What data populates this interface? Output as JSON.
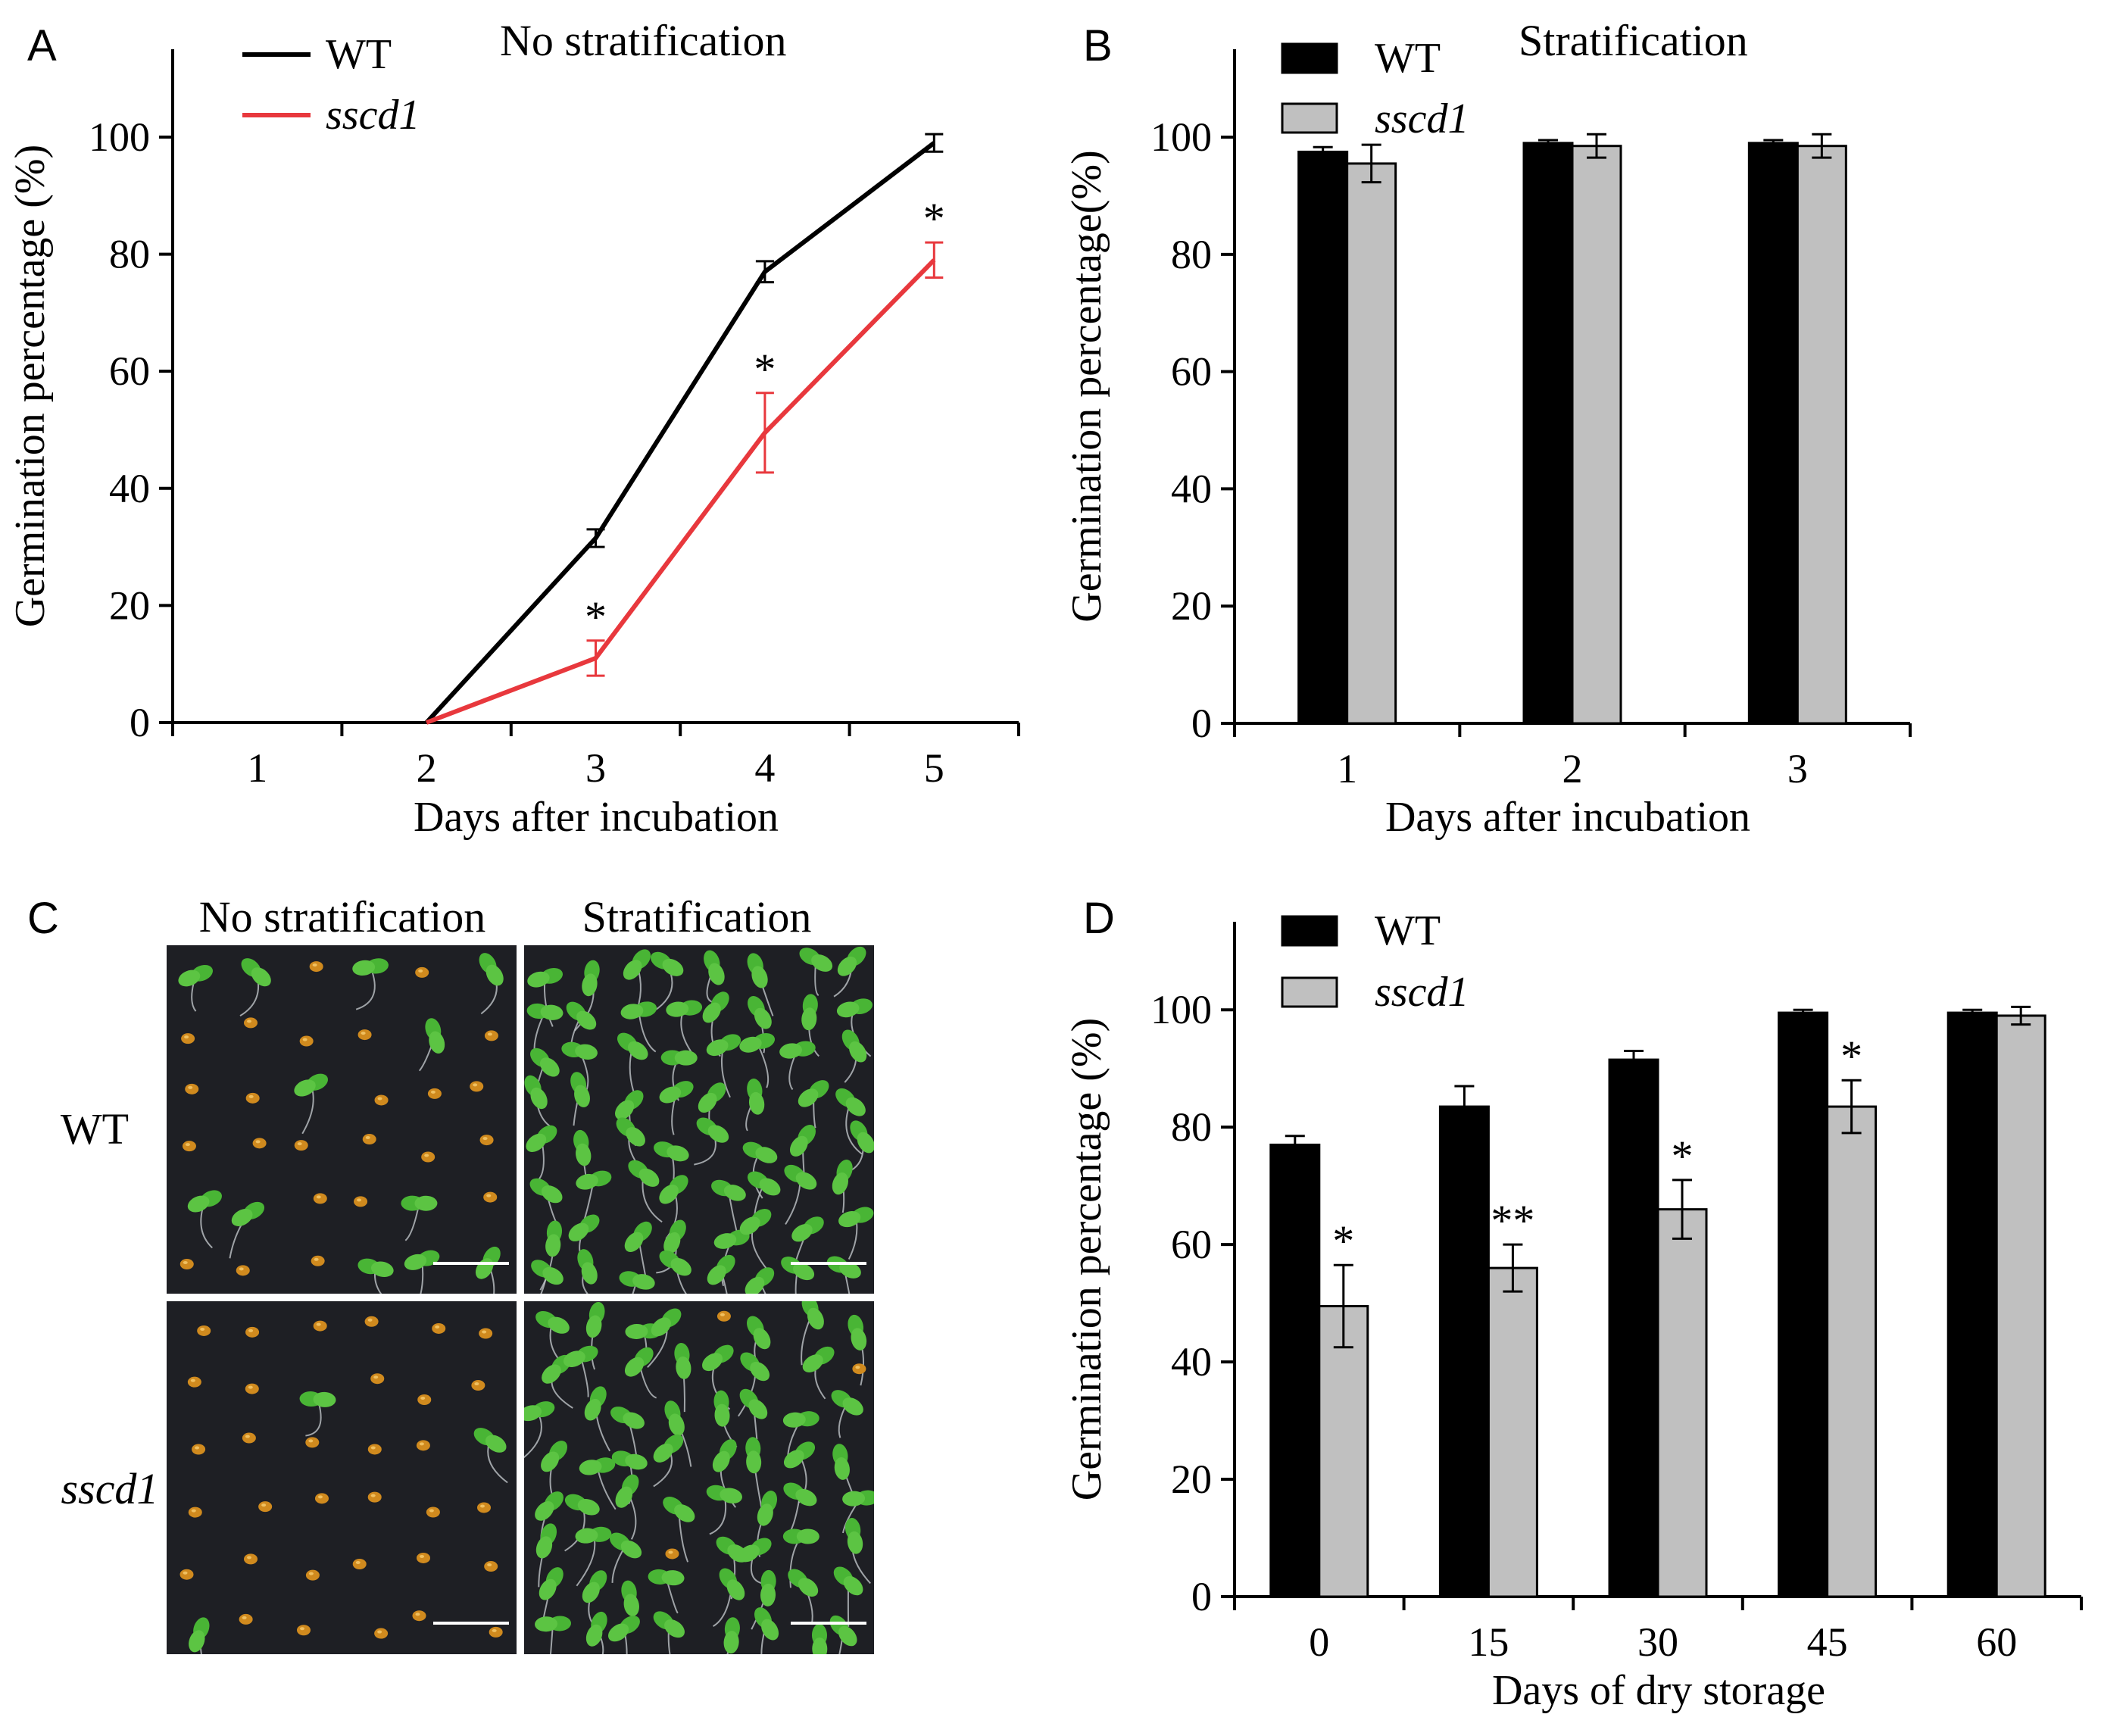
{
  "colors": {
    "wt_line": "#000000",
    "sscd1_line": "#e8383d",
    "wt_bar": "#000000",
    "sscd1_bar": "#c0c0c0",
    "photo_bg": "#1e1f24",
    "seedling": "#49b535",
    "seed": "#d08a1e"
  },
  "panelA": {
    "letter": "A",
    "title": "No stratification",
    "legend": [
      {
        "label": "WT"
      },
      {
        "label": "sscd1"
      }
    ],
    "chart_data": {
      "type": "line",
      "title": "No stratification",
      "xlabel": "Days after incubation",
      "ylabel": "Germination  percentage (%)",
      "categories": [
        "1",
        "2",
        "3",
        "4",
        "5"
      ],
      "ylim": [
        0,
        115
      ],
      "yticks": [
        "0",
        "20",
        "40",
        "60",
        "80",
        "100"
      ],
      "series": [
        {
          "name": "WT",
          "x": [
            2,
            3,
            4,
            5
          ],
          "y": [
            0,
            31.5,
            77,
            99
          ],
          "err": [
            0,
            1.5,
            1.8,
            1.5
          ],
          "stars": [
            "",
            "",
            "",
            ""
          ]
        },
        {
          "name": "sscd1",
          "x": [
            2,
            3,
            4,
            5
          ],
          "y": [
            0,
            11,
            49.5,
            79
          ],
          "err": [
            0,
            3,
            6.8,
            3
          ],
          "stars": [
            "",
            "*",
            "*",
            "*"
          ]
        }
      ]
    }
  },
  "panelB": {
    "letter": "B",
    "title": "Stratification",
    "legend": [
      {
        "label": "WT"
      },
      {
        "label": "sscd1"
      }
    ],
    "chart_data": {
      "type": "bar",
      "title": "Stratification",
      "xlabel": "Days after incubation",
      "ylabel": "Germination percentage(%)",
      "categories": [
        "1",
        "2",
        "3"
      ],
      "ylim": [
        0,
        115
      ],
      "yticks": [
        "0",
        "20",
        "40",
        "60",
        "80",
        "100"
      ],
      "series": [
        {
          "name": "WT",
          "values": [
            97.5,
            99,
            99
          ],
          "err": [
            0.8,
            0.5,
            0.5
          ],
          "stars": [
            "",
            "",
            ""
          ]
        },
        {
          "name": "sscd1",
          "values": [
            95.5,
            98.5,
            98.5
          ],
          "err": [
            3.2,
            2,
            2
          ],
          "stars": [
            "",
            "",
            ""
          ]
        }
      ]
    }
  },
  "panelC": {
    "letter": "C",
    "col_labels": [
      "No stratification",
      "Stratification"
    ],
    "row_labels": [
      "WT",
      "sscd1"
    ]
  },
  "panelD": {
    "letter": "D",
    "legend": [
      {
        "label": "WT"
      },
      {
        "label": "sscd1"
      }
    ],
    "chart_data": {
      "type": "bar",
      "title": "",
      "xlabel": "Days of dry storage",
      "ylabel": "Germination percentage (%)",
      "categories": [
        "0",
        "15",
        "30",
        "45",
        "60"
      ],
      "ylim": [
        0,
        115
      ],
      "yticks": [
        "0",
        "20",
        "40",
        "60",
        "80",
        "100"
      ],
      "series": [
        {
          "name": "WT",
          "values": [
            77,
            83.5,
            91.5,
            99.5,
            99.5
          ],
          "err": [
            1.5,
            3.5,
            1.5,
            0.5,
            0.5
          ],
          "stars": [
            "",
            "",
            "",
            "",
            ""
          ]
        },
        {
          "name": "sscd1",
          "values": [
            49.5,
            56,
            66,
            83.5,
            99
          ],
          "err": [
            7,
            4,
            5,
            4.5,
            1.5
          ],
          "stars": [
            "*",
            "**",
            "*",
            "*",
            ""
          ]
        }
      ]
    }
  }
}
